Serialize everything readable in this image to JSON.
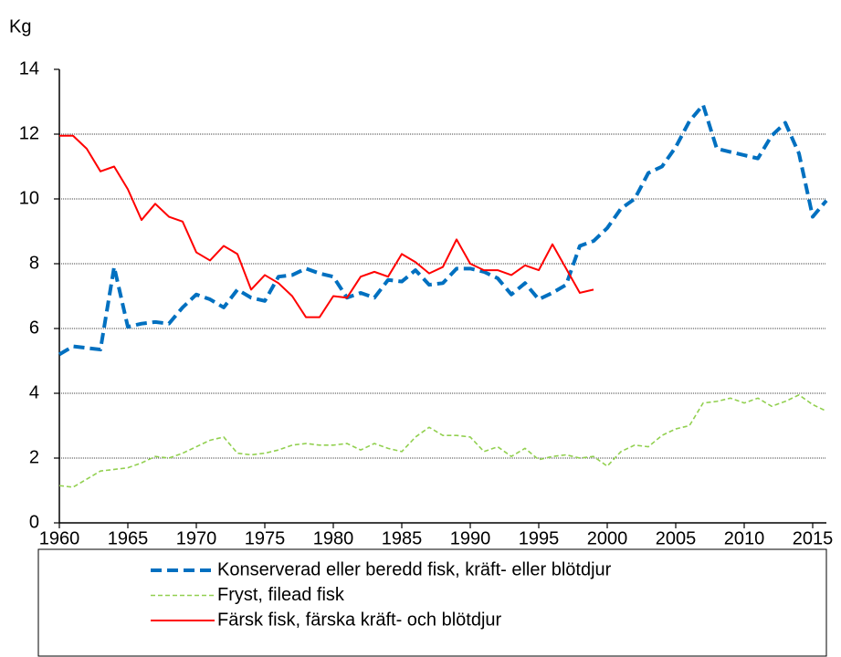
{
  "chart_data": {
    "type": "line",
    "y_label": "Kg",
    "x": [
      1960,
      1961,
      1962,
      1963,
      1964,
      1965,
      1966,
      1967,
      1968,
      1969,
      1970,
      1971,
      1972,
      1973,
      1974,
      1975,
      1976,
      1977,
      1978,
      1979,
      1980,
      1981,
      1982,
      1983,
      1984,
      1985,
      1986,
      1987,
      1988,
      1989,
      1990,
      1991,
      1992,
      1993,
      1994,
      1995,
      1996,
      1997,
      1998,
      1999,
      2000,
      2001,
      2002,
      2003,
      2004,
      2005,
      2006,
      2007,
      2008,
      2009,
      2010,
      2011,
      2012,
      2013,
      2014,
      2015,
      2016
    ],
    "series": [
      {
        "name": "Konserverad eller beredd fisk, kräft- eller blötdjur",
        "color": "#0070c0",
        "style": "dashed-thick",
        "values": [
          5.2,
          5.45,
          5.4,
          5.35,
          7.9,
          6.05,
          6.15,
          6.2,
          6.15,
          6.65,
          7.05,
          6.9,
          6.65,
          7.2,
          6.95,
          6.85,
          7.6,
          7.65,
          7.85,
          7.7,
          7.6,
          6.95,
          7.1,
          6.95,
          7.5,
          7.45,
          7.8,
          7.35,
          7.4,
          7.85,
          7.85,
          7.75,
          7.55,
          7.05,
          7.4,
          6.9,
          7.1,
          7.35,
          8.55,
          8.7,
          9.1,
          9.7,
          10.0,
          10.8,
          11.0,
          11.6,
          12.4,
          12.9,
          11.55,
          11.45,
          11.35,
          11.25,
          11.95,
          12.35,
          11.4,
          9.45,
          9.95
        ]
      },
      {
        "name": "Fryst, filead fisk",
        "color": "#92d050",
        "style": "dashed-thin",
        "values": [
          1.15,
          1.1,
          1.35,
          1.6,
          1.65,
          1.7,
          1.85,
          2.05,
          2.0,
          2.15,
          2.35,
          2.55,
          2.65,
          2.15,
          2.1,
          2.15,
          2.25,
          2.4,
          2.45,
          2.4,
          2.4,
          2.45,
          2.25,
          2.45,
          2.3,
          2.2,
          2.65,
          2.95,
          2.7,
          2.7,
          2.65,
          2.2,
          2.35,
          2.05,
          2.3,
          1.95,
          2.05,
          2.1,
          2.0,
          2.05,
          1.75,
          2.2,
          2.4,
          2.35,
          2.7,
          2.9,
          3.0,
          3.7,
          3.75,
          3.85,
          3.7,
          3.85,
          3.6,
          3.75,
          3.95,
          3.65,
          3.45
        ]
      },
      {
        "name": "Färsk fisk, färska kräft- och blötdjur",
        "color": "#ff0000",
        "style": "solid",
        "values": [
          11.95,
          11.95,
          11.55,
          10.85,
          11.0,
          10.3,
          9.35,
          9.85,
          9.45,
          9.3,
          8.35,
          8.1,
          8.55,
          8.3,
          7.2,
          7.65,
          7.4,
          7.0,
          6.35,
          6.35,
          7.0,
          6.95,
          7.6,
          7.75,
          7.6,
          8.3,
          8.05,
          7.7,
          7.9,
          8.75,
          8.0,
          7.8,
          7.8,
          7.65,
          7.95,
          7.8,
          8.6,
          7.85,
          7.1,
          7.2,
          null,
          null,
          null,
          null,
          null,
          null,
          null,
          null,
          null,
          null,
          null,
          null,
          null,
          null,
          null,
          null,
          null
        ]
      }
    ],
    "xlim": [
      1960,
      2016
    ],
    "xticks": [
      1960,
      1965,
      1970,
      1975,
      1980,
      1985,
      1990,
      1995,
      2000,
      2005,
      2010,
      2015
    ],
    "ylim": [
      0,
      14
    ],
    "yticks": [
      0,
      2,
      4,
      6,
      8,
      10,
      12,
      14
    ],
    "grid": true,
    "legend": "bottom"
  }
}
